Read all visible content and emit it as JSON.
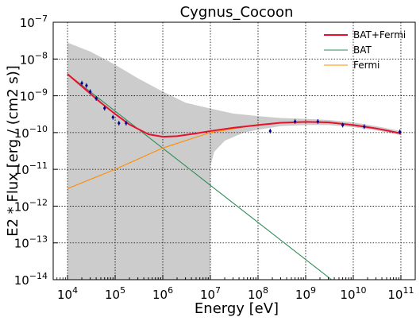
{
  "chart_data": {
    "type": "line",
    "title": "Cygnus_Cocoon",
    "xlabel": "Energy [eV]",
    "ylabel": "E2 * Flux [erg / (cm2 s)]",
    "xscale": "log",
    "yscale": "log",
    "xlim": [
      5000,
      200000000000
    ],
    "ylim": [
      1e-14,
      1e-07
    ],
    "grid": true,
    "legend_position": "top-right",
    "x_ticks": [
      {
        "value": 10000,
        "mantissa": "10",
        "exp": "4"
      },
      {
        "value": 100000,
        "mantissa": "10",
        "exp": "5"
      },
      {
        "value": 1000000,
        "mantissa": "10",
        "exp": "6"
      },
      {
        "value": 10000000,
        "mantissa": "10",
        "exp": "7"
      },
      {
        "value": 100000000,
        "mantissa": "10",
        "exp": "8"
      },
      {
        "value": 1000000000,
        "mantissa": "10",
        "exp": "9"
      },
      {
        "value": 10000000000,
        "mantissa": "10",
        "exp": "10"
      },
      {
        "value": 100000000000,
        "mantissa": "10",
        "exp": "11"
      }
    ],
    "y_ticks": [
      {
        "value": 1e-14,
        "mantissa": "10",
        "exp": "−14"
      },
      {
        "value": 1e-13,
        "mantissa": "10",
        "exp": "−13"
      },
      {
        "value": 1e-12,
        "mantissa": "10",
        "exp": "−12"
      },
      {
        "value": 1e-11,
        "mantissa": "10",
        "exp": "−11"
      },
      {
        "value": 1e-10,
        "mantissa": "10",
        "exp": "−10"
      },
      {
        "value": 1e-09,
        "mantissa": "10",
        "exp": "−9"
      },
      {
        "value": 1e-08,
        "mantissa": "10",
        "exp": "−8"
      },
      {
        "value": 1e-07,
        "mantissa": "10",
        "exp": "−7"
      }
    ],
    "series": [
      {
        "name": "BAT+Fermi",
        "color": "#e8112d",
        "x": [
          10000,
          20000,
          50000,
          100000,
          200000,
          500000,
          1000000,
          2000000,
          5000000,
          10000000,
          30000000,
          100000000,
          300000000,
          1000000000,
          3000000000,
          10000000000,
          30000000000,
          100000000000
        ],
        "y": [
          3.9e-09,
          1.8e-09,
          6.5e-10,
          3.2e-10,
          1.65e-10,
          9e-11,
          7.7e-11,
          8e-11,
          9.5e-11,
          1.1e-10,
          1.35e-10,
          1.6e-10,
          1.85e-10,
          1.95e-10,
          1.9e-10,
          1.6e-10,
          1.3e-10,
          9.5e-11
        ]
      },
      {
        "name": "BAT",
        "color": "#2e8b57",
        "x": [
          10000,
          3500000000
        ],
        "y": [
          3.9e-09,
          1e-14
        ]
      },
      {
        "name": "Fermi",
        "color": "#ff8c00",
        "x": [
          10000,
          100000,
          1000000,
          10000000,
          100000000,
          300000000,
          1000000000,
          3000000000,
          10000000000,
          30000000000,
          100000000000
        ],
        "y": [
          3e-12,
          1e-11,
          3.8e-11,
          1e-10,
          1.65e-10,
          1.85e-10,
          1.95e-10,
          1.9e-10,
          1.6e-10,
          1.3e-10,
          9.5e-11
        ]
      }
    ],
    "band": {
      "color": "#cccccc",
      "x": [
        10000,
        30000,
        100000,
        300000,
        1000000,
        3000000,
        10000000,
        30000000,
        100000000,
        300000000,
        1000000000,
        3000000000,
        10000000000,
        30000000000,
        100000000000
      ],
      "upper": [
        2.8e-08,
        1.6e-08,
        7e-09,
        3e-09,
        1.3e-09,
        6.5e-10,
        4.5e-10,
        3.3e-10,
        2.8e-10,
        2.5e-10,
        2.35e-10,
        2.2e-10,
        1.9e-10,
        1.5e-10,
        1.1e-10
      ],
      "lower_left_until_x": 10000000,
      "lower_right": {
        "x": [
          10000000,
          12000000,
          20000000,
          50000000,
          100000000,
          300000000,
          1000000000,
          3000000000,
          10000000000,
          30000000000,
          100000000000
        ],
        "y": [
          1.2e-11,
          3e-11,
          6e-11,
          1e-10,
          1.2e-10,
          1.5e-10,
          1.6e-10,
          1.6e-10,
          1.4e-10,
          1.15e-10,
          8.5e-11
        ]
      }
    },
    "points": {
      "color": "#00008b",
      "x": [
        20000,
        25000,
        30000,
        40000,
        60000,
        90000,
        120000,
        170000,
        180000000,
        600000000,
        1800000000,
        6000000000,
        17000000000,
        95000000000
      ],
      "y": [
        2.2e-09,
        1.9e-09,
        1.3e-09,
        8.5e-10,
        4.6e-10,
        2.6e-10,
        1.8e-10,
        1.8e-10,
        1.1e-10,
        2e-10,
        2e-10,
        1.6e-10,
        1.45e-10,
        1.05e-10
      ]
    }
  }
}
